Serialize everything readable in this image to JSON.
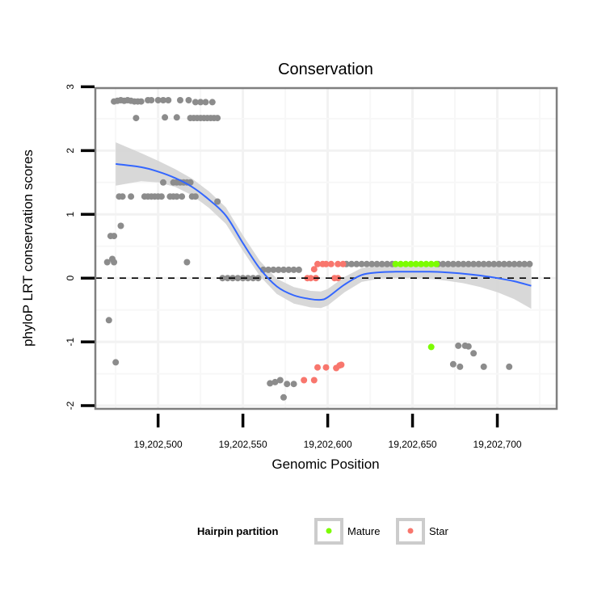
{
  "chart_data": {
    "type": "scatter",
    "title": "Conservation",
    "xlabel": "Genomic Position",
    "ylabel": "phyloP LRT conservation scores",
    "xlim": [
      19202463,
      19202735
    ],
    "ylim": [
      -2.05,
      2.98
    ],
    "x_ticks": [
      19202500,
      19202550,
      19202600,
      19202650,
      19202700
    ],
    "x_tick_labels": [
      "19,202,500",
      "19,202,550",
      "19,202,600",
      "19,202,650",
      "19,202,700"
    ],
    "y_ticks": [
      -2,
      -1,
      0,
      1,
      2,
      3
    ],
    "y_tick_labels": [
      "-2",
      "-1",
      "0",
      "1",
      "2",
      "3"
    ],
    "grid": true,
    "reference_line": {
      "y": 0,
      "style": "dashed"
    },
    "legend": {
      "title": "Hairpin partition",
      "placement": "bottom",
      "entries": [
        {
          "label": "Mature",
          "color": "#7cfc00"
        },
        {
          "label": "Star",
          "color": "#f8766d"
        }
      ]
    },
    "colors": {
      "other": "#8c8c8c",
      "Mature": "#7cfc00",
      "Star": "#f8766d",
      "smooth": "#3366ff",
      "ribbon": "#d4d4d4"
    },
    "series": [
      {
        "name": "Other",
        "points": [
          [
            19202474,
            2.77
          ],
          [
            19202476,
            2.78
          ],
          [
            19202478,
            2.79
          ],
          [
            19202480,
            2.78
          ],
          [
            19202482,
            2.79
          ],
          [
            19202484,
            2.78
          ],
          [
            19202486,
            2.77
          ],
          [
            19202488,
            2.77
          ],
          [
            19202490,
            2.77
          ],
          [
            19202494,
            2.79
          ],
          [
            19202496,
            2.79
          ],
          [
            19202500,
            2.79
          ],
          [
            19202503,
            2.79
          ],
          [
            19202506,
            2.79
          ],
          [
            19202513,
            2.79
          ],
          [
            19202518,
            2.79
          ],
          [
            19202522,
            2.76
          ],
          [
            19202525,
            2.76
          ],
          [
            19202528,
            2.76
          ],
          [
            19202532,
            2.76
          ],
          [
            19202487,
            2.51
          ],
          [
            19202504,
            2.52
          ],
          [
            19202511,
            2.52
          ],
          [
            19202519,
            2.51
          ],
          [
            19202521,
            2.51
          ],
          [
            19202523,
            2.51
          ],
          [
            19202525,
            2.51
          ],
          [
            19202527,
            2.51
          ],
          [
            19202529,
            2.51
          ],
          [
            19202531,
            2.51
          ],
          [
            19202533,
            2.51
          ],
          [
            19202535,
            2.51
          ],
          [
            19202503,
            1.5
          ],
          [
            19202509,
            1.5
          ],
          [
            19202511,
            1.5
          ],
          [
            19202513,
            1.5
          ],
          [
            19202515,
            1.5
          ],
          [
            19202517,
            1.5
          ],
          [
            19202519,
            1.5
          ],
          [
            19202477,
            1.28
          ],
          [
            19202479,
            1.28
          ],
          [
            19202484,
            1.28
          ],
          [
            19202492,
            1.28
          ],
          [
            19202494,
            1.28
          ],
          [
            19202496,
            1.28
          ],
          [
            19202498,
            1.28
          ],
          [
            19202500,
            1.28
          ],
          [
            19202502,
            1.28
          ],
          [
            19202507,
            1.28
          ],
          [
            19202509,
            1.28
          ],
          [
            19202511,
            1.28
          ],
          [
            19202514,
            1.28
          ],
          [
            19202520,
            1.28
          ],
          [
            19202522,
            1.28
          ],
          [
            19202535,
            1.2
          ],
          [
            19202478,
            0.82
          ],
          [
            19202472,
            0.66
          ],
          [
            19202474,
            0.66
          ],
          [
            19202470,
            0.25
          ],
          [
            19202473,
            0.3
          ],
          [
            19202474,
            0.25
          ],
          [
            19202517,
            0.25
          ],
          [
            19202471,
            -0.66
          ],
          [
            19202475,
            -1.32
          ],
          [
            19202538,
            0.0
          ],
          [
            19202541,
            0.0
          ],
          [
            19202544,
            0.0
          ],
          [
            19202547,
            0.0
          ],
          [
            19202550,
            0.0
          ],
          [
            19202553,
            0.0
          ],
          [
            19202556,
            0.0
          ],
          [
            19202559,
            0.0
          ],
          [
            19202562,
            0.13
          ],
          [
            19202565,
            0.13
          ],
          [
            19202568,
            0.13
          ],
          [
            19202571,
            0.13
          ],
          [
            19202574,
            0.13
          ],
          [
            19202577,
            0.13
          ],
          [
            19202580,
            0.13
          ],
          [
            19202583,
            0.13
          ],
          [
            19202611,
            0.22
          ],
          [
            19202614,
            0.22
          ],
          [
            19202617,
            0.22
          ],
          [
            19202620,
            0.22
          ],
          [
            19202623,
            0.22
          ],
          [
            19202626,
            0.22
          ],
          [
            19202629,
            0.22
          ],
          [
            19202632,
            0.22
          ],
          [
            19202635,
            0.22
          ],
          [
            19202638,
            0.22
          ],
          [
            19202665,
            0.22
          ],
          [
            19202668,
            0.22
          ],
          [
            19202671,
            0.22
          ],
          [
            19202674,
            0.22
          ],
          [
            19202677,
            0.22
          ],
          [
            19202680,
            0.22
          ],
          [
            19202683,
            0.22
          ],
          [
            19202686,
            0.22
          ],
          [
            19202689,
            0.22
          ],
          [
            19202692,
            0.22
          ],
          [
            19202695,
            0.22
          ],
          [
            19202698,
            0.22
          ],
          [
            19202701,
            0.22
          ],
          [
            19202704,
            0.22
          ],
          [
            19202707,
            0.22
          ],
          [
            19202710,
            0.22
          ],
          [
            19202713,
            0.22
          ],
          [
            19202716,
            0.22
          ],
          [
            19202719,
            0.22
          ],
          [
            19202566,
            -1.65
          ],
          [
            19202569,
            -1.63
          ],
          [
            19202572,
            -1.6
          ],
          [
            19202576,
            -1.66
          ],
          [
            19202580,
            -1.66
          ],
          [
            19202574,
            -1.87
          ],
          [
            19202677,
            -1.06
          ],
          [
            19202681,
            -1.06
          ],
          [
            19202683,
            -1.07
          ],
          [
            19202686,
            -1.18
          ],
          [
            19202674,
            -1.35
          ],
          [
            19202678,
            -1.39
          ],
          [
            19202692,
            -1.39
          ],
          [
            19202707,
            -1.39
          ]
        ]
      },
      {
        "name": "Mature",
        "points": [
          [
            19202640,
            0.22
          ],
          [
            19202643,
            0.22
          ],
          [
            19202646,
            0.22
          ],
          [
            19202649,
            0.22
          ],
          [
            19202652,
            0.22
          ],
          [
            19202655,
            0.22
          ],
          [
            19202658,
            0.22
          ],
          [
            19202661,
            0.22
          ],
          [
            19202664,
            0.22
          ],
          [
            19202661,
            -1.08
          ]
        ]
      },
      {
        "name": "Star",
        "points": [
          [
            19202594,
            0.22
          ],
          [
            19202597,
            0.22
          ],
          [
            19202599,
            0.22
          ],
          [
            19202602,
            0.22
          ],
          [
            19202606,
            0.22
          ],
          [
            19202609,
            0.22
          ],
          [
            19202592,
            0.14
          ],
          [
            19202588,
            0.0
          ],
          [
            19202590,
            0.0
          ],
          [
            19202593,
            0.0
          ],
          [
            19202604,
            0.0
          ],
          [
            19202606,
            0.0
          ],
          [
            19202586,
            -1.6
          ],
          [
            19202592,
            -1.6
          ],
          [
            19202594,
            -1.4
          ],
          [
            19202599,
            -1.4
          ],
          [
            19202605,
            -1.41
          ],
          [
            19202607,
            -1.37
          ],
          [
            19202608,
            -1.36
          ]
        ]
      }
    ],
    "smooth": {
      "x": [
        19202475,
        19202490,
        19202500,
        19202510,
        19202520,
        19202530,
        19202540,
        19202550,
        19202560,
        19202570,
        19202580,
        19202590,
        19202596,
        19202600,
        19202610,
        19202620,
        19202630,
        19202640,
        19202650,
        19202660,
        19202670,
        19202680,
        19202690,
        19202700,
        19202710,
        19202720
      ],
      "y": [
        1.79,
        1.74,
        1.67,
        1.57,
        1.43,
        1.23,
        0.98,
        0.55,
        0.15,
        -0.13,
        -0.27,
        -0.33,
        -0.34,
        -0.3,
        -0.1,
        0.05,
        0.09,
        0.1,
        0.1,
        0.1,
        0.09,
        0.07,
        0.04,
        0.0,
        -0.05,
        -0.12
      ],
      "lower": [
        1.45,
        1.52,
        1.5,
        1.43,
        1.3,
        1.1,
        0.85,
        0.43,
        0.03,
        -0.25,
        -0.4,
        -0.46,
        -0.47,
        -0.43,
        -0.22,
        -0.06,
        -0.01,
        0.0,
        0.0,
        -0.01,
        -0.04,
        -0.08,
        -0.14,
        -0.22,
        -0.33,
        -0.48
      ],
      "upper": [
        2.13,
        1.96,
        1.84,
        1.71,
        1.56,
        1.36,
        1.11,
        0.67,
        0.27,
        -0.01,
        -0.14,
        -0.2,
        -0.21,
        -0.17,
        0.02,
        0.16,
        0.19,
        0.2,
        0.2,
        0.21,
        0.22,
        0.22,
        0.22,
        0.22,
        0.23,
        0.24
      ]
    }
  }
}
